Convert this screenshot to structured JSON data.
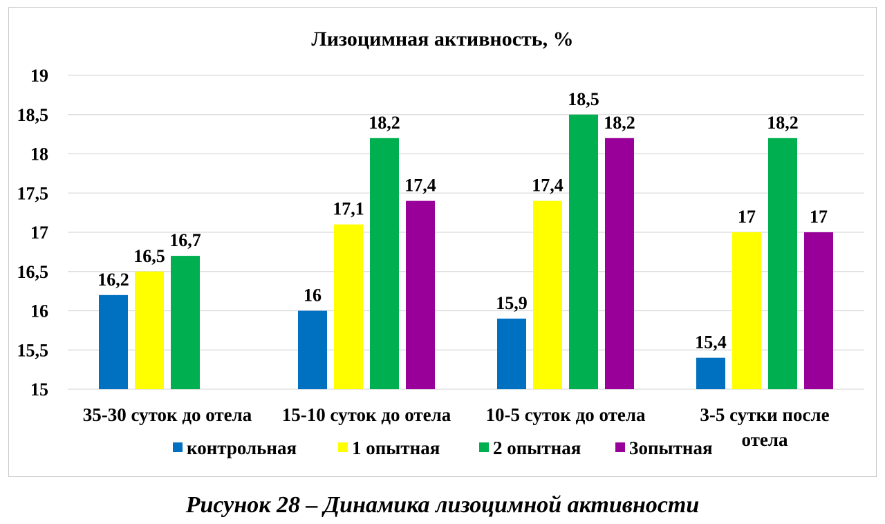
{
  "chart_data": {
    "type": "bar",
    "title": "Лизоцимная активность, %",
    "categories": [
      [
        "35-30 суток до отела"
      ],
      [
        "15-10 суток до отела"
      ],
      [
        "10-5 суток до отела"
      ],
      [
        "3-5 сутки после",
        "отела"
      ]
    ],
    "series": [
      {
        "name": "контрольная",
        "color": "#0070C0",
        "values": [
          16.2,
          16.0,
          15.9,
          15.4
        ],
        "labels": [
          "16,2",
          "16",
          "15,9",
          "15,4"
        ]
      },
      {
        "name": "1 опытная",
        "color": "#FFFF00",
        "values": [
          16.5,
          17.1,
          17.4,
          17.0
        ],
        "labels": [
          "16,5",
          "17,1",
          "17,4",
          "17"
        ]
      },
      {
        "name": "2 опытная",
        "color": "#00B050",
        "values": [
          16.7,
          18.2,
          18.5,
          18.2
        ],
        "labels": [
          "16,7",
          "18,2",
          "18,5",
          "18,2"
        ]
      },
      {
        "name": "3опытная",
        "color": "#990099",
        "values": [
          null,
          17.4,
          18.2,
          17.0
        ],
        "labels": [
          "",
          "17,4",
          "18,2",
          "17"
        ]
      }
    ],
    "ylim": [
      15,
      19
    ],
    "yticks": [
      15,
      15.5,
      16,
      16.5,
      17,
      17.5,
      18,
      18.5,
      19
    ],
    "ytick_labels": [
      "15",
      "15,5",
      "16",
      "16,5",
      "17",
      "17,5",
      "18",
      "18,5",
      "19"
    ],
    "grid": true,
    "legend": "bottom"
  },
  "caption": "Рисунок 28 – Динамика лизоцимной активности"
}
